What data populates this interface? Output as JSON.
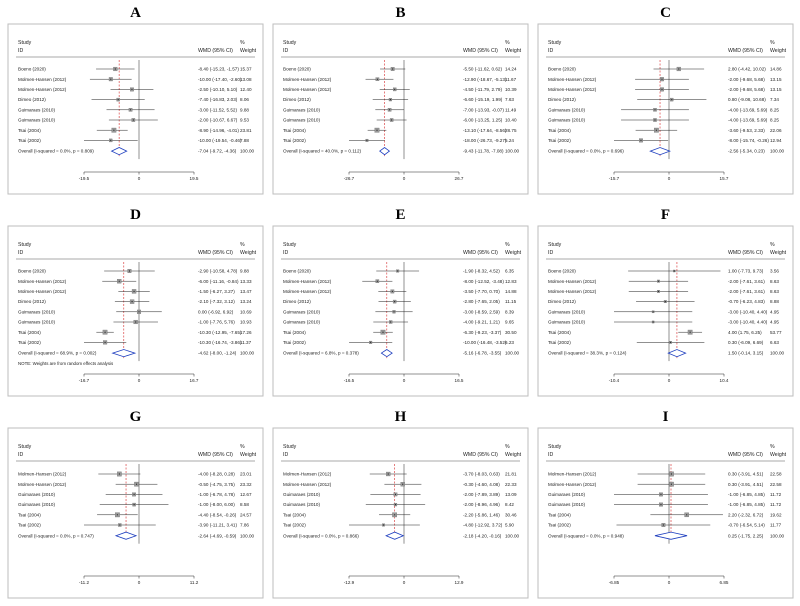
{
  "chart_data": [
    {
      "type": "forest",
      "panel": "A",
      "header": {
        "study": "Study",
        "id": "ID",
        "effect": "WMD (95% CI)",
        "pct": "%",
        "weight": "Weight"
      },
      "xlim": [
        -19.5,
        19.5
      ],
      "ticks": [
        "-19.5",
        "0",
        "19.5"
      ],
      "studies": [
        {
          "label": "Boeno (2020)",
          "est": -8.4,
          "lo": -15.23,
          "hi": -1.57,
          "ci": "-8.40 (-15.23, -1.57)",
          "weight": "15.37"
        },
        {
          "label": "Molmen-Hansen (2012)",
          "est": -10.0,
          "lo": -17.4,
          "hi": -2.6,
          "ci": "-10.00 (-17.40, -2.60)",
          "weight": "13.08"
        },
        {
          "label": "Molmen-Hansen (2012)",
          "est": -2.5,
          "lo": -10.1,
          "hi": 5.1,
          "ci": "-2.50 (-10.10, 5.10)",
          "weight": "12.40"
        },
        {
          "label": "Dimeo (2012)",
          "est": -7.4,
          "lo": -16.83,
          "hi": 2.03,
          "ci": "-7.40 (-16.83, 2.03)",
          "weight": "8.06"
        },
        {
          "label": "Guimaraes (2010)",
          "est": -3.0,
          "lo": -11.52,
          "hi": 5.52,
          "ci": "-3.00 (-11.52, 5.52)",
          "weight": "9.88"
        },
        {
          "label": "Guimaraes (2010)",
          "est": -2.0,
          "lo": -10.67,
          "hi": 6.67,
          "ci": "-2.00 (-10.67, 6.67)",
          "weight": "9.53"
        },
        {
          "label": "Tsai (2004)",
          "est": -8.9,
          "lo": -14.96,
          "hi": -4.01,
          "ci": "-8.90 (-14.96, -4.01)",
          "weight": "23.81"
        },
        {
          "label": "Tsai (2002)",
          "est": -10.0,
          "lo": -19.54,
          "hi": -0.46,
          "ci": "-10.00 (-19.54, -0.46)",
          "weight": "7.88"
        }
      ],
      "overall": {
        "label": "Overall  (I-squared = 0.0%, p = 0.809)",
        "est": -7.04,
        "lo": -9.72,
        "hi": -4.36,
        "ci": "-7.04 (-9.72, -4.36)",
        "weight": "100.00"
      },
      "note": ""
    },
    {
      "type": "forest",
      "panel": "B",
      "header": {
        "study": "Study",
        "id": "ID",
        "effect": "WMD (95% CI)",
        "pct": "%",
        "weight": "Weight"
      },
      "xlim": [
        -26.7,
        26.7
      ],
      "ticks": [
        "-26.7",
        "0",
        "26.7"
      ],
      "studies": [
        {
          "label": "Boeno (2020)",
          "est": -5.5,
          "lo": -11.62,
          "hi": 0.62,
          "ci": "-5.50 (-11.62, 0.62)",
          "weight": "14.24"
        },
        {
          "label": "Molmen-Hansen (2012)",
          "est": -12.9,
          "lo": -18.67,
          "hi": -5.13,
          "ci": "-12.90 (-18.67, -5.13)",
          "weight": "11.67"
        },
        {
          "label": "Molmen-Hansen (2012)",
          "est": -4.5,
          "lo": -11.79,
          "hi": 2.79,
          "ci": "-4.50 (-11.79, 2.79)",
          "weight": "10.39"
        },
        {
          "label": "Dimeo (2012)",
          "est": -6.6,
          "lo": -15.19,
          "hi": 1.99,
          "ci": "-6.60 (-15.19, 1.99)",
          "weight": "7.63"
        },
        {
          "label": "Guimaraes (2010)",
          "est": -7.0,
          "lo": -13.93,
          "hi": -0.07,
          "ci": "-7.00 (-13.93, -0.07)",
          "weight": "11.49"
        },
        {
          "label": "Guimaraes (2010)",
          "est": -6.0,
          "lo": -13.25,
          "hi": 1.25,
          "ci": "-6.00 (-13.25, 1.25)",
          "weight": "10.40"
        },
        {
          "label": "Tsai (2004)",
          "est": -13.1,
          "lo": -17.64,
          "hi": -8.56,
          "ci": "-13.10 (-17.64, -8.56)",
          "weight": "28.75"
        },
        {
          "label": "Tsai (2002)",
          "est": -18.0,
          "lo": -26.73,
          "hi": -9.27,
          "ci": "-18.00 (-26.73, -9.27)",
          "weight": "5.24"
        }
      ],
      "overall": {
        "label": "Overall  (I-squared = 40.0%, p = 0.112)",
        "est": -9.43,
        "lo": -11.78,
        "hi": -7.08,
        "ci": "-9.43 (-11.78, -7.08)",
        "weight": "100.00"
      },
      "note": ""
    },
    {
      "type": "forest",
      "panel": "C",
      "header": {
        "study": "Study",
        "id": "ID",
        "effect": "WMD (95% CI)",
        "pct": "%",
        "weight": "Weight"
      },
      "xlim": [
        -15.7,
        15.7
      ],
      "ticks": [
        "-15.7",
        "0",
        "15.7"
      ],
      "studies": [
        {
          "label": "Boeno (2020)",
          "est": 2.8,
          "lo": -4.42,
          "hi": 10.02,
          "ci": "2.80 (-4.42, 10.02)",
          "weight": "14.86"
        },
        {
          "label": "Molmen-Hansen (2012)",
          "est": -2.0,
          "lo": -9.68,
          "hi": 5.68,
          "ci": "-2.00 (-9.68, 5.68)",
          "weight": "13.15"
        },
        {
          "label": "Molmen-Hansen (2012)",
          "est": -2.0,
          "lo": -9.68,
          "hi": 5.68,
          "ci": "-2.00 (-9.68, 5.68)",
          "weight": "13.15"
        },
        {
          "label": "Dimeo (2012)",
          "est": 0.8,
          "lo": -9.08,
          "hi": 10.68,
          "ci": "0.80 (-9.08, 10.68)",
          "weight": "7.34"
        },
        {
          "label": "Guimaraes (2010)",
          "est": -4.0,
          "lo": -13.69,
          "hi": 5.69,
          "ci": "-4.00 (-13.69, 5.69)",
          "weight": "8.25"
        },
        {
          "label": "Guimaraes (2010)",
          "est": -4.0,
          "lo": -13.69,
          "hi": 5.69,
          "ci": "-4.00 (-13.69, 5.69)",
          "weight": "8.25"
        },
        {
          "label": "Tsai (2004)",
          "est": -3.6,
          "lo": -9.53,
          "hi": 2.33,
          "ci": "-3.60 (-9.53, 2.33)",
          "weight": "22.06"
        },
        {
          "label": "Tsai (2002)",
          "est": -8.0,
          "lo": -15.74,
          "hi": -0.26,
          "ci": "-8.00 (-15.74, -0.26)",
          "weight": "12.94"
        }
      ],
      "overall": {
        "label": "Overall  (I-squared = 0.0%, p = 0.696)",
        "est": -2.56,
        "lo": -5.34,
        "hi": 0.23,
        "ci": "-2.56 (-5.34, 0.23)",
        "weight": "100.00"
      },
      "note": ""
    },
    {
      "type": "forest",
      "panel": "D",
      "header": {
        "study": "Study",
        "id": "ID",
        "effect": "WMD (95% CI)",
        "pct": "%",
        "weight": "Weight"
      },
      "xlim": [
        -16.7,
        16.7
      ],
      "ticks": [
        "-16.7",
        "0",
        "16.7"
      ],
      "studies": [
        {
          "label": "Boeno (2020)",
          "est": -2.9,
          "lo": -10.58,
          "hi": 4.78,
          "ci": "-2.90 (-10.58, 4.78)",
          "weight": "9.88"
        },
        {
          "label": "Molmen-Hansen (2012)",
          "est": -6.0,
          "lo": -11.16,
          "hi": -0.84,
          "ci": "-6.00 (-11.16, -0.84)",
          "weight": "13.33"
        },
        {
          "label": "Molmen-Hansen (2012)",
          "est": -1.5,
          "lo": -6.27,
          "hi": 3.27,
          "ci": "-1.50 (-6.27, 3.27)",
          "weight": "13.47"
        },
        {
          "label": "Dimeo (2012)",
          "est": -2.1,
          "lo": -7.32,
          "hi": 3.12,
          "ci": "-2.10 (-7.32, 3.12)",
          "weight": "13.24"
        },
        {
          "label": "Guimaraes (2010)",
          "est": 0.0,
          "lo": -6.92,
          "hi": 6.92,
          "ci": "0.00 (-6.92, 6.92)",
          "weight": "10.69"
        },
        {
          "label": "Guimaraes (2010)",
          "est": -1.0,
          "lo": -7.76,
          "hi": 5.76,
          "ci": "-1.00 (-7.76, 5.76)",
          "weight": "10.93"
        },
        {
          "label": "Tsai (2004)",
          "est": -10.3,
          "lo": -12.95,
          "hi": -7.65,
          "ci": "-10.30 (-12.95, -7.65)",
          "weight": "17.26"
        },
        {
          "label": "Tsai (2002)",
          "est": -10.3,
          "lo": -16.74,
          "hi": -3.86,
          "ci": "-10.30 (-16.74, -3.86)",
          "weight": "11.37"
        }
      ],
      "overall": {
        "label": "Overall  (I-squared = 68.9%, p = 0.002)",
        "est": -4.62,
        "lo": -8.0,
        "hi": -1.24,
        "ci": "-4.62 (-8.00, -1.24)",
        "weight": "100.00"
      },
      "note": "NOTE: Weights are from random effects analysis"
    },
    {
      "type": "forest",
      "panel": "E",
      "header": {
        "study": "Study",
        "id": "ID",
        "effect": "WMD (95% CI)",
        "pct": "%",
        "weight": "Weight"
      },
      "xlim": [
        -16.5,
        16.5
      ],
      "ticks": [
        "-16.5",
        "0",
        "16.5"
      ],
      "studies": [
        {
          "label": "Boeno (2020)",
          "est": -1.9,
          "lo": -8.32,
          "hi": 4.52,
          "ci": "-1.90 (-8.32, 4.52)",
          "weight": "6.35"
        },
        {
          "label": "Molmen-Hansen (2012)",
          "est": -8.0,
          "lo": -12.52,
          "hi": -3.48,
          "ci": "-8.00 (-12.52, -3.48)",
          "weight": "12.83"
        },
        {
          "label": "Molmen-Hansen (2012)",
          "est": -3.5,
          "lo": -7.7,
          "hi": 0.7,
          "ci": "-3.50 (-7.70, 0.70)",
          "weight": "14.88"
        },
        {
          "label": "Dimeo (2012)",
          "est": -2.8,
          "lo": -7.65,
          "hi": 2.05,
          "ci": "-2.80 (-7.65, 2.05)",
          "weight": "11.15"
        },
        {
          "label": "Guimaraes (2010)",
          "est": -3.0,
          "lo": -8.59,
          "hi": 2.59,
          "ci": "-3.00 (-8.59, 2.59)",
          "weight": "8.39"
        },
        {
          "label": "Guimaraes (2010)",
          "est": -4.0,
          "lo": -9.21,
          "hi": 1.21,
          "ci": "-4.00 (-9.21, 1.21)",
          "weight": "9.65"
        },
        {
          "label": "Tsai (2004)",
          "est": -6.3,
          "lo": -9.23,
          "hi": -3.37,
          "ci": "-6.30 (-9.23, -3.37)",
          "weight": "30.50"
        },
        {
          "label": "Tsai (2002)",
          "est": -10.0,
          "lo": -16.48,
          "hi": -3.52,
          "ci": "-10.00 (-16.48, -3.52)",
          "weight": "6.23"
        }
      ],
      "overall": {
        "label": "Overall  (I-squared = 6.8%, p = 0.378)",
        "est": -5.16,
        "lo": -6.78,
        "hi": -3.55,
        "ci": "-5.16 (-6.78, -3.55)",
        "weight": "100.00"
      },
      "note": ""
    },
    {
      "type": "forest",
      "panel": "F",
      "header": {
        "study": "Study",
        "id": "ID",
        "effect": "WMD (95% CI)",
        "pct": "%",
        "weight": "Weight"
      },
      "xlim": [
        -10.4,
        10.4
      ],
      "ticks": [
        "-10.4",
        "0",
        "10.4"
      ],
      "studies": [
        {
          "label": "Boeno (2020)",
          "est": 1.0,
          "lo": -7.73,
          "hi": 9.73,
          "ci": "1.00 (-7.73, 9.73)",
          "weight": "3.56"
        },
        {
          "label": "Molmen-Hansen (2012)",
          "est": -2.0,
          "lo": -7.61,
          "hi": 3.61,
          "ci": "-2.00 (-7.61, 3.61)",
          "weight": "8.63"
        },
        {
          "label": "Molmen-Hansen (2012)",
          "est": -2.0,
          "lo": -7.61,
          "hi": 3.61,
          "ci": "-2.00 (-7.61, 3.61)",
          "weight": "8.63"
        },
        {
          "label": "Dimeo (2012)",
          "est": -0.7,
          "lo": -6.23,
          "hi": 4.83,
          "ci": "-0.70 (-6.23, 4.83)",
          "weight": "8.88"
        },
        {
          "label": "Guimaraes (2010)",
          "est": -3.0,
          "lo": -10.4,
          "hi": 4.4,
          "ci": "-3.00 (-10.40, 4.40)",
          "weight": "4.95"
        },
        {
          "label": "Guimaraes (2010)",
          "est": -3.0,
          "lo": -10.4,
          "hi": 4.4,
          "ci": "-3.00 (-10.40, 4.40)",
          "weight": "4.95"
        },
        {
          "label": "Tsai (2004)",
          "est": 4.0,
          "lo": 1.75,
          "hi": 6.25,
          "ci": "4.00 (1.75, 6.25)",
          "weight": "53.77"
        },
        {
          "label": "Tsai (2002)",
          "est": 0.3,
          "lo": -6.09,
          "hi": 6.69,
          "ci": "0.30 (-6.09, 6.69)",
          "weight": "6.63"
        }
      ],
      "overall": {
        "label": "Overall  (I-squared = 38.3%, p = 0.124)",
        "est": 1.5,
        "lo": -0.14,
        "hi": 3.15,
        "ci": "1.50 (-0.14, 3.15)",
        "weight": "100.00"
      },
      "note": ""
    },
    {
      "type": "forest",
      "panel": "G",
      "header": {
        "study": "Study",
        "id": "ID",
        "effect": "WMD (95% CI)",
        "pct": "%",
        "weight": "Weight"
      },
      "xlim": [
        -11.2,
        11.2
      ],
      "ticks": [
        "-11.2",
        "0",
        "11.2"
      ],
      "studies": [
        {
          "label": "Molmen-Hansen (2012)",
          "est": -4.0,
          "lo": -8.28,
          "hi": 0.28,
          "ci": "-4.00 (-8.28, 0.28)",
          "weight": "23.01"
        },
        {
          "label": "Molmen-Hansen (2012)",
          "est": -0.5,
          "lo": -4.75,
          "hi": 3.75,
          "ci": "-0.50 (-4.75, 3.75)",
          "weight": "23.32"
        },
        {
          "label": "Guimaraes (2010)",
          "est": -1.0,
          "lo": -6.78,
          "hi": 4.78,
          "ci": "-1.00 (-6.78, 4.78)",
          "weight": "12.67"
        },
        {
          "label": "Guimaraes (2010)",
          "est": -1.0,
          "lo": -8.0,
          "hi": 6.0,
          "ci": "-1.00 (-8.00, 6.00)",
          "weight": "8.58"
        },
        {
          "label": "Tsai (2004)",
          "est": -4.4,
          "lo": -8.54,
          "hi": -0.26,
          "ci": "-4.40 (-8.54, -0.26)",
          "weight": "24.57"
        },
        {
          "label": "Tsai (2002)",
          "est": -3.9,
          "lo": -11.21,
          "hi": 3.41,
          "ci": "-3.90 (-11.21, 3.41)",
          "weight": "7.86"
        }
      ],
      "overall": {
        "label": "Overall  (I-squared = 0.0%, p = 0.747)",
        "est": -2.64,
        "lo": -4.69,
        "hi": -0.59,
        "ci": "-2.64 (-4.69, -0.59)",
        "weight": "100.00"
      },
      "note": ""
    },
    {
      "type": "forest",
      "panel": "H",
      "header": {
        "study": "Study",
        "id": "ID",
        "effect": "WMD (95% CI)",
        "pct": "%",
        "weight": "Weight"
      },
      "xlim": [
        -12.9,
        12.9
      ],
      "ticks": [
        "-12.9",
        "0",
        "12.9"
      ],
      "studies": [
        {
          "label": "Molmen-Hansen (2012)",
          "est": -3.7,
          "lo": -8.03,
          "hi": 0.63,
          "ci": "-3.70 (-8.03, 0.63)",
          "weight": "21.81"
        },
        {
          "label": "Molmen-Hansen (2012)",
          "est": -0.3,
          "lo": -4.6,
          "hi": 4.08,
          "ci": "-0.30 (-4.60, 4.08)",
          "weight": "22.33"
        },
        {
          "label": "Guimaraes (2010)",
          "est": -2.0,
          "lo": -7.89,
          "hi": 3.89,
          "ci": "-2.00 (-7.89, 3.89)",
          "weight": "13.09"
        },
        {
          "label": "Guimaraes (2010)",
          "est": -2.0,
          "lo": -8.96,
          "hi": 4.96,
          "ci": "-2.00 (-8.96, 4.96)",
          "weight": "8.42"
        },
        {
          "label": "Tsai (2004)",
          "est": -2.2,
          "lo": -5.86,
          "hi": 1.46,
          "ci": "-2.20 (-5.86, 1.46)",
          "weight": "30.46"
        },
        {
          "label": "Tsai (2002)",
          "est": -4.8,
          "lo": -12.92,
          "hi": 3.72,
          "ci": "-4.80 (-12.92, 3.72)",
          "weight": "5.90"
        }
      ],
      "overall": {
        "label": "Overall  (I-squared = 0.0%, p = 0.866)",
        "est": -2.18,
        "lo": -4.2,
        "hi": -0.16,
        "ci": "-2.18 (-4.20, -0.16)",
        "weight": "100.00"
      },
      "note": ""
    },
    {
      "type": "forest",
      "panel": "I",
      "header": {
        "study": "Study",
        "id": "ID",
        "effect": "WMD (95% CI)",
        "pct": "%",
        "weight": "Weight"
      },
      "xlim": [
        -6.85,
        6.85
      ],
      "ticks": [
        "-6.85",
        "0",
        "6.85"
      ],
      "studies": [
        {
          "label": "Molmen-Hansen (2012)",
          "est": 0.3,
          "lo": -3.91,
          "hi": 4.51,
          "ci": "0.30 (-3.91, 4.51)",
          "weight": "22.58"
        },
        {
          "label": "Molmen-Hansen (2012)",
          "est": 0.3,
          "lo": -3.91,
          "hi": 4.51,
          "ci": "0.30 (-3.91, 4.51)",
          "weight": "22.58"
        },
        {
          "label": "Guimaraes (2010)",
          "est": -1.0,
          "lo": -6.85,
          "hi": 4.85,
          "ci": "-1.00 (-6.85, 4.85)",
          "weight": "11.72"
        },
        {
          "label": "Guimaraes (2010)",
          "est": -1.0,
          "lo": -6.85,
          "hi": 4.85,
          "ci": "-1.00 (-6.85, 4.85)",
          "weight": "11.72"
        },
        {
          "label": "Tsai (2004)",
          "est": 2.2,
          "lo": -2.32,
          "hi": 6.72,
          "ci": "2.20 (-2.32, 6.72)",
          "weight": "19.62"
        },
        {
          "label": "Tsai (2002)",
          "est": -0.7,
          "lo": -6.54,
          "hi": 5.14,
          "ci": "-0.70 (-6.54, 5.14)",
          "weight": "11.77"
        }
      ],
      "overall": {
        "label": "Overall  (I-squared = 0.0%, p = 0.948)",
        "est": 0.25,
        "lo": -1.75,
        "hi": 2.25,
        "ci": "0.25 (-1.75, 2.25)",
        "weight": "100.00"
      },
      "note": ""
    }
  ]
}
